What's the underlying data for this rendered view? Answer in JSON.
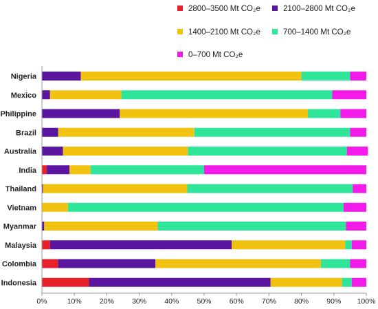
{
  "chart_data": {
    "type": "bar",
    "orientation": "horizontal",
    "stacked": true,
    "title": "",
    "xlabel": "",
    "ylabel": "",
    "xlim": [
      0,
      100
    ],
    "x_ticks": [
      "0%",
      "10%",
      "20%",
      "30%",
      "40%",
      "50%",
      "60%",
      "70%",
      "80%",
      "90%",
      "100%"
    ],
    "grid": false,
    "legend_position": "top",
    "categories": [
      "Nigeria",
      "Mexico",
      "Philippine",
      "Brazil",
      "Australia",
      "India",
      "Thailand",
      "Vietnam",
      "Myanmar",
      "Malaysia",
      "Colombia",
      "Indonesia"
    ],
    "series": [
      {
        "name": "2800–3500 Mt CO₂e",
        "color": "#e8202a",
        "values": [
          0,
          0,
          0,
          0,
          0,
          1.5,
          0,
          0,
          0,
          2.5,
          5,
          14.5
        ]
      },
      {
        "name": "2100–2800 Mt CO₂e",
        "color": "#5a169e",
        "values": [
          12,
          2.5,
          24,
          5,
          6.5,
          7,
          0.3,
          0,
          0.7,
          56,
          30,
          56
        ]
      },
      {
        "name": "1400–2100 Mt CO₂e",
        "color": "#f2c211",
        "values": [
          68,
          22,
          58,
          42,
          38.5,
          6.5,
          44.5,
          8,
          35,
          35,
          51,
          22
        ]
      },
      {
        "name": "700–1400 Mt CO₂e",
        "color": "#2ee59a",
        "values": [
          15,
          65,
          10,
          48,
          49,
          35,
          51,
          85,
          58,
          2,
          9,
          3
        ]
      },
      {
        "name": "0–700 Mt CO₂e",
        "color": "#f21bea",
        "values": [
          5,
          10.5,
          8,
          5,
          6.5,
          50,
          4.2,
          7,
          6.3,
          4.5,
          5,
          4.5
        ]
      }
    ]
  }
}
